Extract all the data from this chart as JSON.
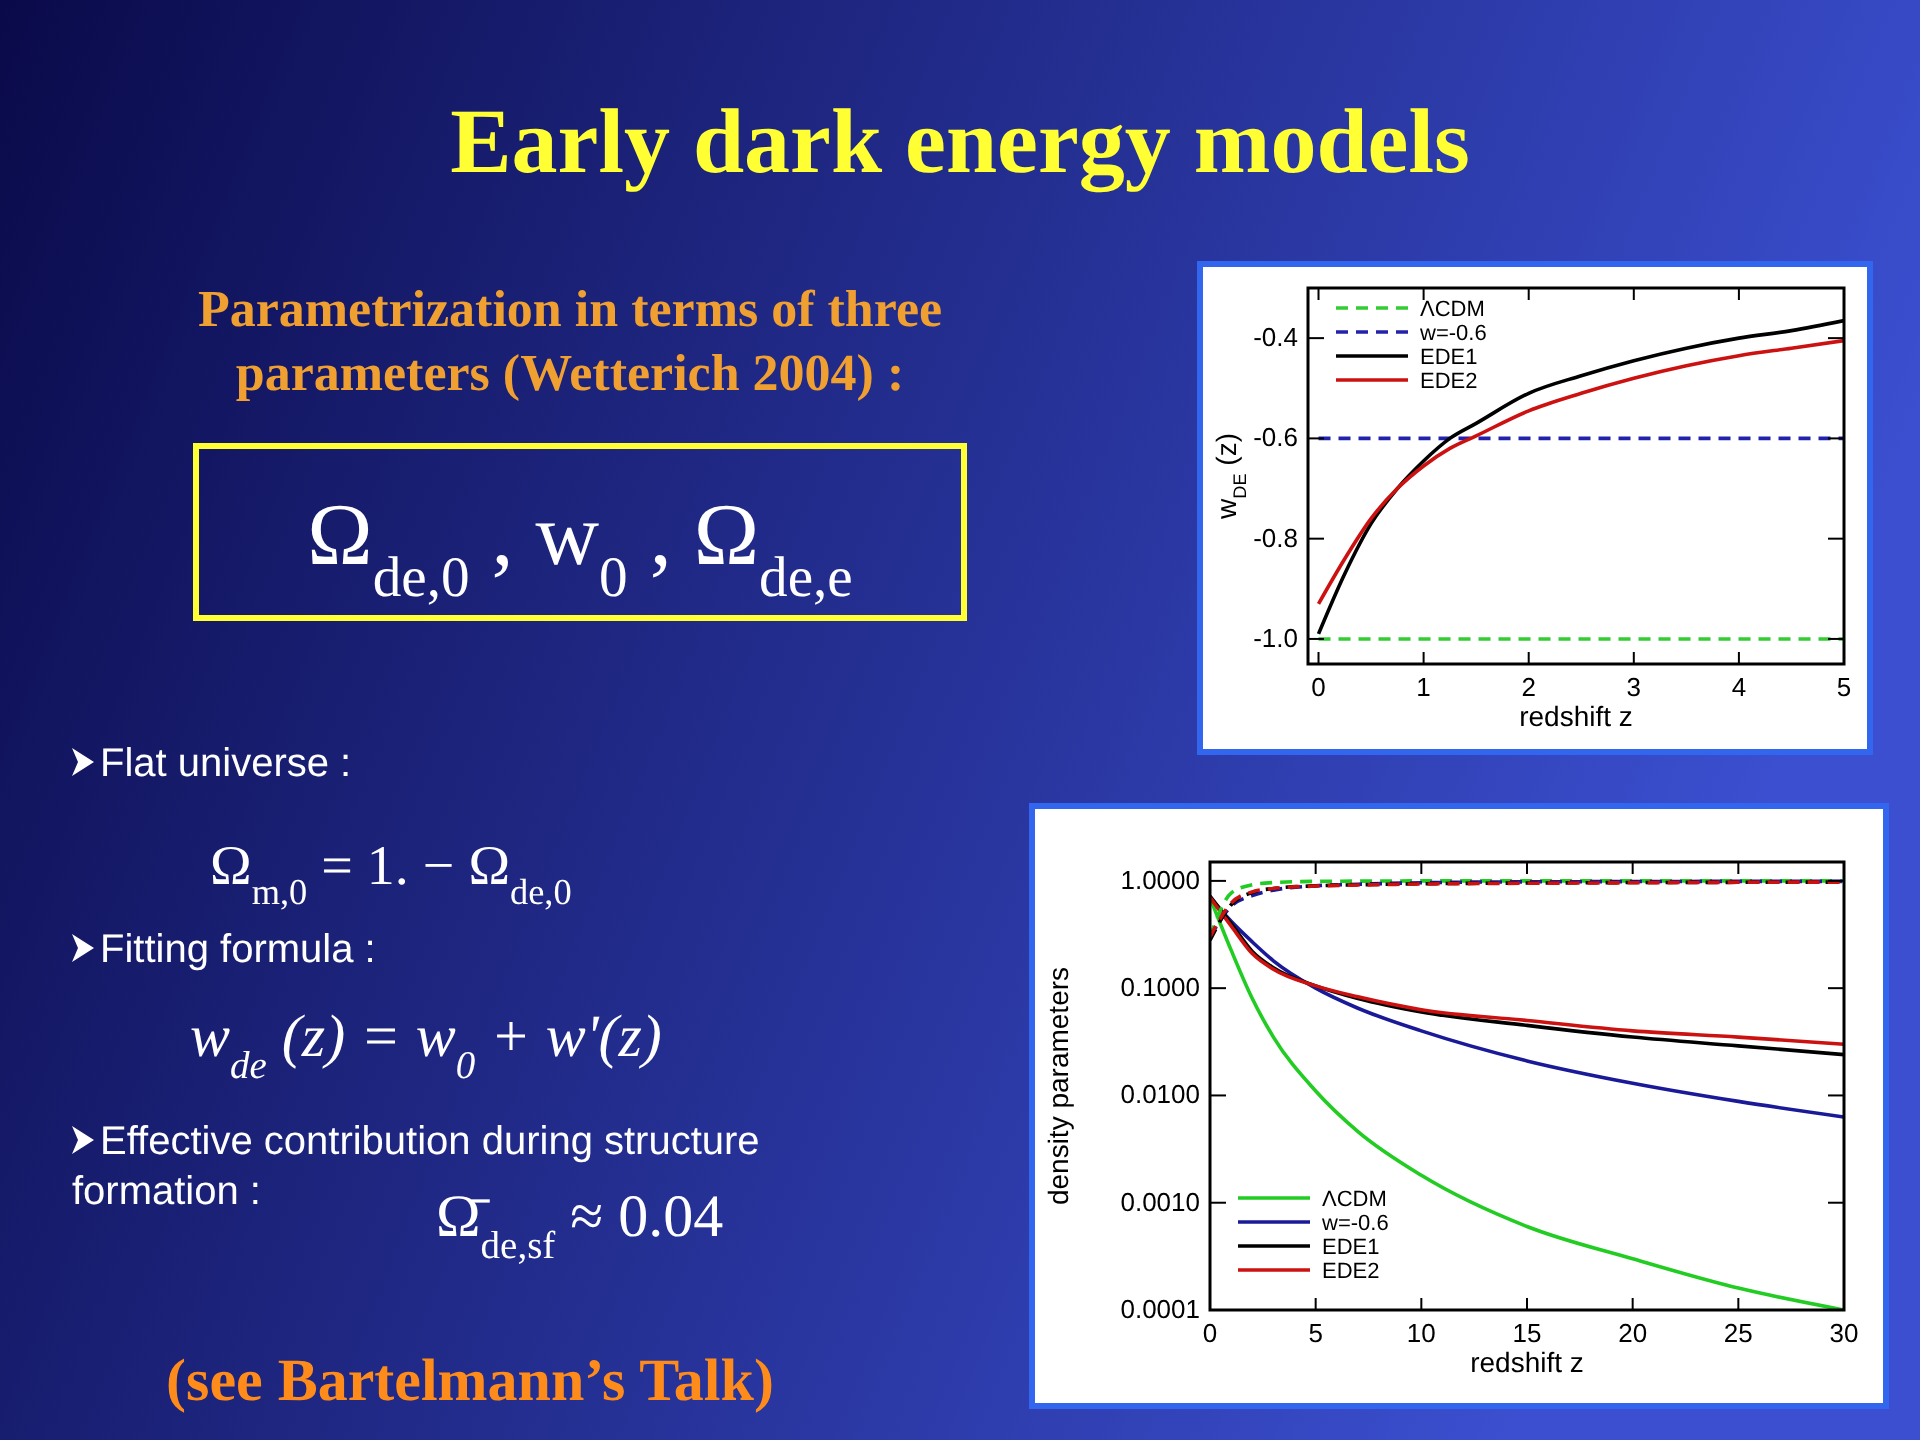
{
  "chart_data": [
    {
      "type": "other",
      "title": "Early dark energy models",
      "subtitle": "Parametrization in terms of three parameters (Wetterich 2004) :",
      "annotations": [
        "Ω$_{de,0}$ , w$_{0}$ , Ω$_{de,e}$",
        "Flat universe :",
        "Ω$_{m,0}$ = 1. − Ω$_{de,0}$",
        "Fitting formula :",
        "w$_{de}$(z) = w$_{0}$ + w'(z)",
        "Effective contribution during structure formation :",
        "Ω̄$_{de,sf}$ ≈ 0.04",
        "(see Bartelmann’s Talk)"
      ]
    },
    {
      "type": "line",
      "xlabel": "redshift z",
      "ylabel": "w$_{DE}$(z)",
      "xlim": [
        -0.1,
        5
      ],
      "ylim": [
        -1.05,
        -0.3
      ],
      "xticks": [
        0,
        1,
        2,
        3,
        4,
        5
      ],
      "yticks": [
        {
          "value": -1,
          "label": "-1.0"
        },
        -0.8,
        -0.6,
        -0.4
      ],
      "legend": "top left",
      "series": [
        {
          "name": "ΛCDM",
          "color": "#33cc33",
          "line_style": "dashed",
          "x": [
            0,
            5
          ],
          "values": [
            -1,
            -1
          ]
        },
        {
          "name": "w=-0.6",
          "color": "#2222aa",
          "line_style": "dashed",
          "x": [
            0,
            5
          ],
          "values": [
            -0.6,
            -0.6
          ]
        },
        {
          "name": "EDE1",
          "color": "#000000",
          "x": [
            0,
            0.25,
            0.5,
            0.75,
            1,
            1.25,
            1.5,
            2,
            2.5,
            3,
            3.5,
            4,
            4.5,
            5
          ],
          "values": [
            -0.99,
            -0.87,
            -0.77,
            -0.7,
            -0.645,
            -0.6,
            -0.57,
            -0.51,
            -0.475,
            -0.445,
            -0.42,
            -0.4,
            -0.385,
            -0.365
          ]
        },
        {
          "name": "EDE2",
          "color": "#cc1111",
          "x": [
            0,
            0.25,
            0.5,
            0.75,
            1,
            1.25,
            1.5,
            2,
            2.5,
            3,
            3.5,
            4,
            4.5,
            5
          ],
          "values": [
            -0.93,
            -0.84,
            -0.76,
            -0.7,
            -0.655,
            -0.62,
            -0.595,
            -0.545,
            -0.51,
            -0.48,
            -0.455,
            -0.435,
            -0.42,
            -0.405
          ]
        }
      ]
    },
    {
      "type": "line",
      "xlabel": "redshift z",
      "ylabel": "density parameters",
      "log": "y",
      "xlim": [
        0,
        30
      ],
      "ylim": [
        0.0001,
        1.5
      ],
      "xticks": [
        0,
        5,
        10,
        15,
        20,
        25,
        30
      ],
      "yticks": [
        {
          "value": 0.0001,
          "label": "0.0001"
        },
        {
          "value": 0.001,
          "label": "0.0010"
        },
        {
          "value": 0.01,
          "label": "0.0100"
        },
        {
          "value": 0.1,
          "label": "0.1000"
        },
        {
          "value": 1,
          "label": "1.0000"
        }
      ],
      "legend": "bottom left",
      "x": [
        0,
        1,
        2,
        3,
        5,
        7,
        10,
        15,
        20,
        25,
        30
      ],
      "series": [
        {
          "name": "ΛCDM",
          "color": "#22cc22",
          "values": [
            0.7,
            0.226,
            0.08,
            0.035,
            0.011,
            0.0046,
            0.0018,
            0.0006,
            0.0003,
            0.00016,
            0.0001
          ]
        },
        {
          "name": "w=-0.6",
          "color": "#1a1a99",
          "values": [
            0.7,
            0.42,
            0.27,
            0.18,
            0.1,
            0.065,
            0.04,
            0.021,
            0.013,
            0.0088,
            0.0063
          ]
        },
        {
          "name": "EDE1",
          "color": "#000000",
          "values": [
            0.72,
            0.4,
            0.22,
            0.155,
            0.105,
            0.08,
            0.06,
            0.045,
            0.035,
            0.029,
            0.024
          ]
        },
        {
          "name": "EDE2",
          "color": "#cc1111",
          "values": [
            0.7,
            0.38,
            0.21,
            0.15,
            0.105,
            0.083,
            0.063,
            0.05,
            0.04,
            0.035,
            0.03
          ]
        },
        {
          "color": "#22cc22",
          "line_style": "dashed",
          "values": [
            0.3,
            0.77,
            0.92,
            0.965,
            0.99,
            0.995,
            1,
            1,
            1,
            1,
            1
          ]
        },
        {
          "color": "#1a1a99",
          "line_style": "dashed",
          "values": [
            0.3,
            0.58,
            0.73,
            0.82,
            0.9,
            0.93,
            0.96,
            0.98,
            0.985,
            0.99,
            0.99
          ]
        },
        {
          "color": "#000000",
          "line_style": "dashed",
          "values": [
            0.28,
            0.6,
            0.78,
            0.85,
            0.9,
            0.92,
            0.94,
            0.955,
            0.965,
            0.97,
            0.975
          ]
        },
        {
          "color": "#cc1111",
          "line_style": "dashed",
          "values": [
            0.3,
            0.62,
            0.79,
            0.85,
            0.895,
            0.915,
            0.935,
            0.95,
            0.96,
            0.97,
            0.975
          ]
        }
      ]
    }
  ]
}
